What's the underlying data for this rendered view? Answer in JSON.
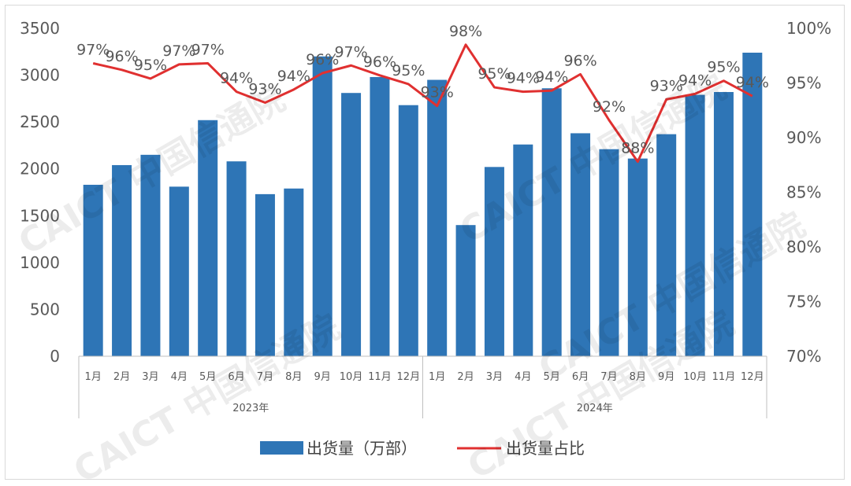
{
  "chart_data": {
    "type": "bar",
    "groups": [
      {
        "label": "2023年",
        "months": [
          "1月",
          "2月",
          "3月",
          "4月",
          "5月",
          "6月",
          "7月",
          "8月",
          "9月",
          "10月",
          "11月",
          "12月"
        ]
      },
      {
        "label": "2024年",
        "months": [
          "1月",
          "2月",
          "3月",
          "4月",
          "5月",
          "6月",
          "7月",
          "8月",
          "9月",
          "10月",
          "11月",
          "12月"
        ]
      }
    ],
    "series": [
      {
        "name": "出货量（万部）",
        "kind": "bar",
        "axis": "left",
        "color": "#2e75b6",
        "values": [
          1830,
          2040,
          2150,
          1810,
          2520,
          2080,
          1730,
          1790,
          3200,
          2810,
          2980,
          2680,
          2950,
          1400,
          2020,
          2260,
          2860,
          2380,
          2210,
          2110,
          2370,
          2790,
          2820,
          3240
        ]
      },
      {
        "name": "出货量占比",
        "kind": "line",
        "axis": "right",
        "color": "#e03030",
        "values": [
          96.8,
          96.2,
          95.4,
          96.7,
          96.8,
          94.2,
          93.2,
          94.4,
          95.9,
          96.6,
          95.7,
          94.9,
          92.9,
          98.5,
          94.6,
          94.2,
          94.3,
          95.8,
          91.6,
          87.8,
          93.5,
          94.0,
          95.2,
          93.8
        ],
        "labels": [
          "97%",
          "96%",
          "95%",
          "97%",
          "97%",
          "94%",
          "93%",
          "94%",
          "96%",
          "97%",
          "96%",
          "95%",
          "93%",
          "98%",
          "95%",
          "94%",
          "94%",
          "96%",
          "92%",
          "88%",
          "93%",
          "94%",
          "95%",
          "94%"
        ]
      }
    ],
    "y_left": {
      "min": 0,
      "max": 3500,
      "ticks": [
        "0",
        "500",
        "1000",
        "1500",
        "2000",
        "2500",
        "3000",
        "3500"
      ]
    },
    "y_right": {
      "min": 70,
      "max": 100,
      "ticks": [
        "70%",
        "75%",
        "80%",
        "85%",
        "90%",
        "95%",
        "100%"
      ]
    },
    "legend_position": "bottom",
    "gridlines": false
  },
  "watermark": "CAICT 中国信通院"
}
